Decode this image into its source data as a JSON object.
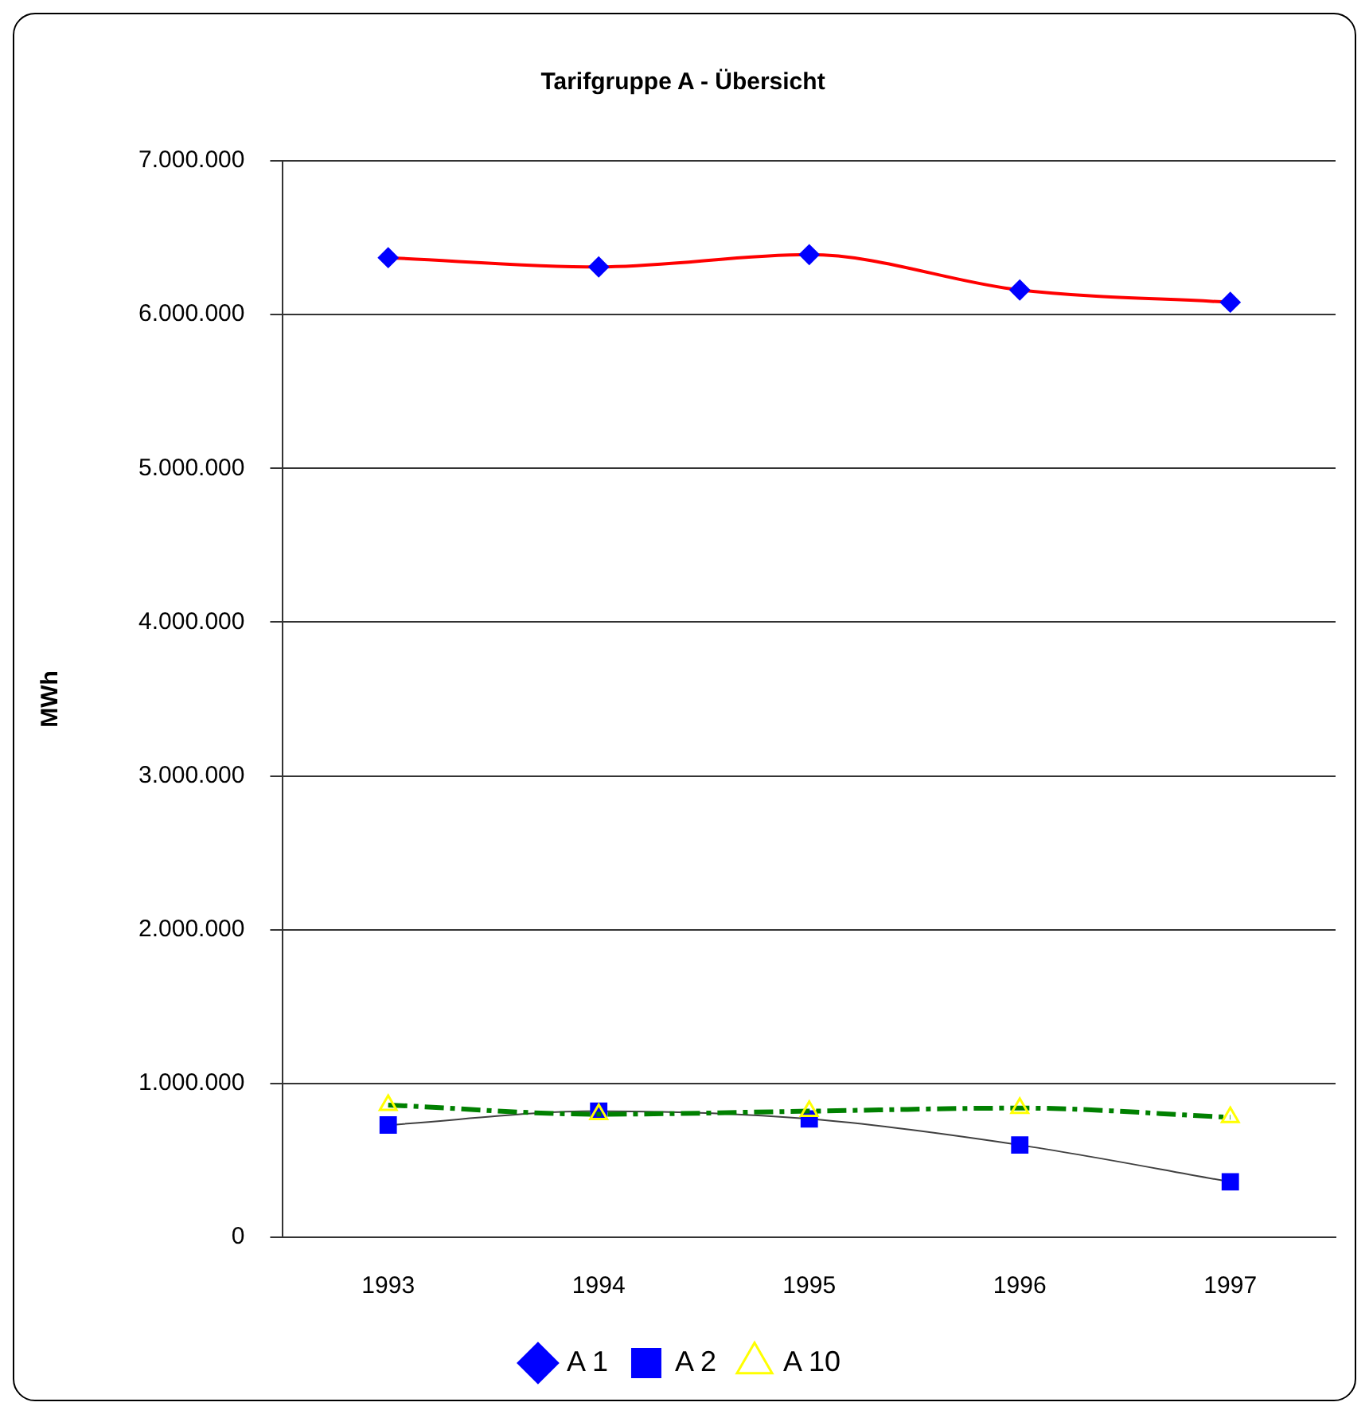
{
  "chart_data": {
    "type": "line",
    "title": "Tarifgruppe A - Übersicht",
    "ylabel": "MWh",
    "categories": [
      "1993",
      "1994",
      "1995",
      "1996",
      "1997"
    ],
    "series": [
      {
        "name": "A 1",
        "color": "#ff0000",
        "marker": "diamond",
        "line_style": "solid",
        "values": [
          6370000,
          6310000,
          6390000,
          6160000,
          6080000
        ]
      },
      {
        "name": "A 2",
        "color": "#404040",
        "marker": "square",
        "line_style": "solid",
        "values": [
          730000,
          820000,
          770000,
          600000,
          360000
        ]
      },
      {
        "name": "A 10",
        "color": "#008000",
        "marker": "triangle",
        "line_style": "dashed",
        "values": [
          860000,
          800000,
          820000,
          840000,
          780000
        ]
      }
    ],
    "ylim": [
      0,
      7000000
    ],
    "yticks": [
      0,
      {
        "value": 1000000,
        "label": "1.000.000"
      },
      {
        "value": 2000000,
        "label": "2.000.000"
      },
      {
        "value": 3000000,
        "label": "3.000.000"
      },
      {
        "value": 4000000,
        "label": "4.000.000"
      },
      {
        "value": 5000000,
        "label": "5.000.000"
      },
      {
        "value": 6000000,
        "label": "6.000.000"
      },
      {
        "value": 7000000,
        "label": "7.000.000"
      }
    ],
    "grid": "y",
    "legend": "bottom"
  }
}
